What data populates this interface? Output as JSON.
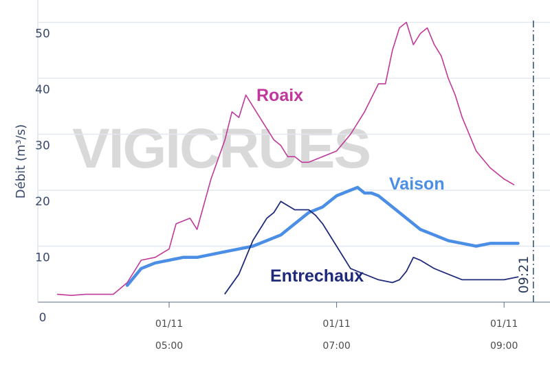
{
  "chart_data": {
    "type": "line",
    "ylabel": "Débit (m³/s)",
    "watermark": "VIGICRUES",
    "ylim": [
      0,
      52
    ],
    "y_ticks": [
      "0",
      "10",
      "20",
      "30",
      "40",
      "50"
    ],
    "x_ticks": [
      {
        "date": "01/11",
        "time": "05:00"
      },
      {
        "date": "01/11",
        "time": "07:00"
      },
      {
        "date": "01/11",
        "time": "09:00"
      }
    ],
    "now_marker": "09:21",
    "grid": true,
    "series": [
      {
        "name": "Roaix",
        "color": "#c0389a",
        "x": [
          "03:40",
          "03:50",
          "04:00",
          "04:10",
          "04:20",
          "04:30",
          "04:40",
          "04:50",
          "05:00",
          "05:05",
          "05:15",
          "05:20",
          "05:30",
          "05:40",
          "05:45",
          "05:50",
          "05:55",
          "06:00",
          "06:05",
          "06:15",
          "06:20",
          "06:25",
          "06:30",
          "06:35",
          "06:40",
          "06:50",
          "07:00",
          "07:10",
          "07:20",
          "07:30",
          "07:35",
          "07:40",
          "07:45",
          "07:50",
          "07:55",
          "08:00",
          "08:05",
          "08:10",
          "08:15",
          "08:20",
          "08:25",
          "08:30",
          "08:40",
          "08:50",
          "09:00",
          "09:07"
        ],
        "values": [
          1.4,
          1.2,
          1.4,
          1.4,
          1.4,
          3.5,
          7.5,
          8,
          9.5,
          14,
          15,
          13,
          22,
          29,
          34,
          33,
          37,
          35,
          33,
          29,
          28,
          26,
          26,
          25,
          25,
          26,
          27,
          30,
          34,
          39,
          39,
          45,
          49,
          50,
          46,
          48,
          49,
          46,
          44,
          40,
          37,
          33,
          27,
          24,
          22,
          21
        ]
      },
      {
        "name": "Vaison",
        "color": "#4a8ee6",
        "x": [
          "04:30",
          "04:40",
          "04:50",
          "05:00",
          "05:10",
          "05:20",
          "05:30",
          "05:40",
          "05:50",
          "06:00",
          "06:10",
          "06:20",
          "06:30",
          "06:40",
          "06:50",
          "07:00",
          "07:10",
          "07:15",
          "07:20",
          "07:25",
          "07:30",
          "07:40",
          "07:50",
          "08:00",
          "08:10",
          "08:20",
          "08:30",
          "08:40",
          "08:50",
          "09:00",
          "09:10"
        ],
        "values": [
          3,
          6,
          7,
          7.5,
          8,
          8,
          8.5,
          9,
          9.5,
          10,
          11,
          12,
          14,
          16,
          17,
          19,
          20,
          20.5,
          19.5,
          19.5,
          19,
          17,
          15,
          13,
          12,
          11,
          10.5,
          10,
          10.5,
          10.5,
          10.5
        ]
      },
      {
        "name": "Entrechaux",
        "color": "#1f2a7a",
        "x": [
          "05:40",
          "05:50",
          "06:00",
          "06:10",
          "06:15",
          "06:20",
          "06:30",
          "06:40",
          "06:45",
          "06:50",
          "07:00",
          "07:10",
          "07:20",
          "07:30",
          "07:40",
          "07:45",
          "07:50",
          "07:55",
          "08:00",
          "08:10",
          "08:20",
          "08:30",
          "08:40",
          "08:50",
          "09:00",
          "09:10"
        ],
        "values": [
          1.5,
          5,
          11,
          15,
          16,
          18,
          16.5,
          16.5,
          15.5,
          14,
          10,
          6,
          5,
          4,
          3.5,
          4,
          5.5,
          8,
          7.5,
          6,
          5,
          4,
          4,
          4,
          4,
          4.5
        ]
      }
    ]
  }
}
